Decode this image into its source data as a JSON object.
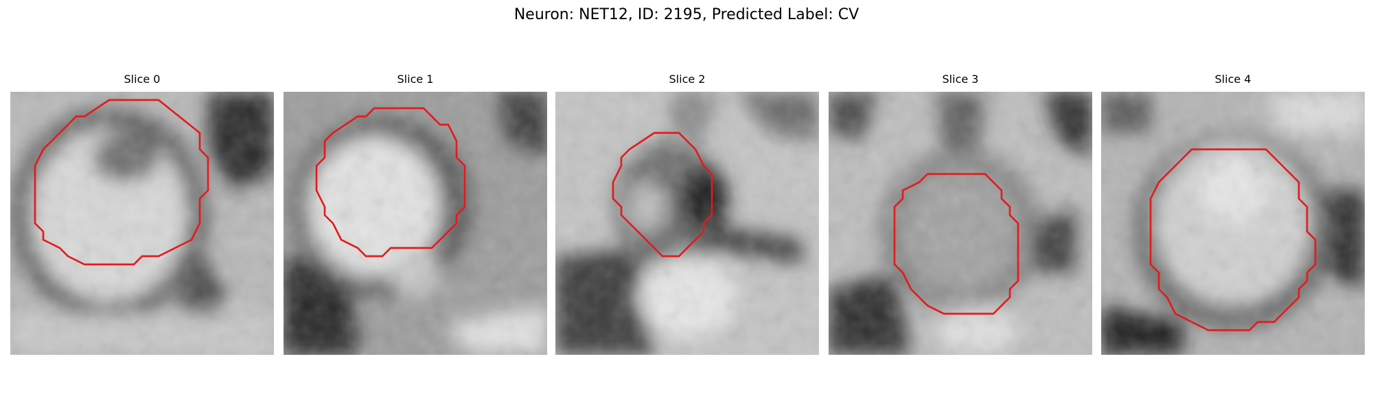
{
  "figure": {
    "title": "Neuron: NET12, ID: 2195, Predicted Label: CV",
    "contour_color": "#e41a1c",
    "colormap": "grayscale"
  },
  "slices": [
    {
      "title": "Slice 0"
    },
    {
      "title": "Slice 1"
    },
    {
      "title": "Slice 2"
    },
    {
      "title": "Slice 3"
    },
    {
      "title": "Slice 4"
    }
  ]
}
